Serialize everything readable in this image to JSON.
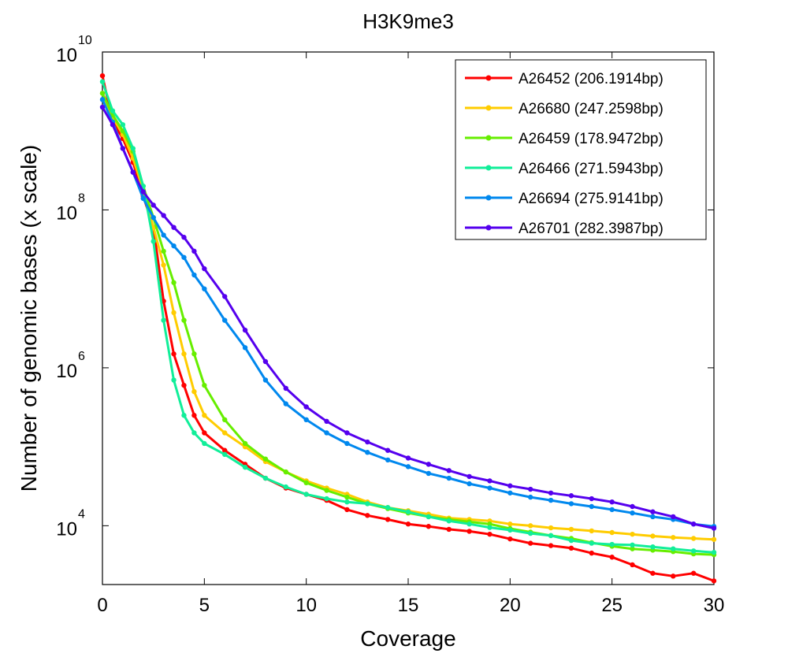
{
  "chart_data": {
    "type": "line",
    "title": "H3K9me3",
    "xlabel": "Coverage",
    "ylabel": "Number of genomic bases (x scale)",
    "xlim": [
      0,
      30
    ],
    "ylim": [
      1800,
      10000000000
    ],
    "y_scale": "log",
    "x_ticks": [
      "0",
      "5",
      "10",
      "15",
      "20",
      "25",
      "30"
    ],
    "y_ticks": [
      {
        "base": "10",
        "exp": "10",
        "value": 10000000000
      },
      {
        "base": "10",
        "exp": "8",
        "value": 100000000
      },
      {
        "base": "10",
        "exp": "6",
        "value": 1000000
      },
      {
        "base": "10",
        "exp": "4",
        "value": 10000
      }
    ],
    "grid": false,
    "legend_position": "top-right",
    "x": [
      0,
      0.5,
      1,
      1.5,
      2,
      2.5,
      3,
      3.5,
      4,
      4.5,
      5,
      6,
      7,
      8,
      9,
      10,
      11,
      12,
      13,
      14,
      15,
      16,
      17,
      18,
      19,
      20,
      21,
      22,
      23,
      24,
      25,
      26,
      27,
      28,
      29,
      30
    ],
    "series": [
      {
        "name": "A26452 (206.1914bp)",
        "color": "#ff0000",
        "values": [
          5000000000,
          1300000000,
          800000000,
          400000000,
          150000000,
          60000000,
          7000000,
          1500000,
          600000,
          250000,
          150000,
          90000,
          60000,
          40000,
          30000,
          25000,
          21000,
          16000,
          13500,
          12000,
          10500,
          9800,
          9000,
          8500,
          7800,
          6800,
          6000,
          5600,
          5200,
          4500,
          4000,
          3200,
          2500,
          2300,
          2500,
          2000
        ]
      },
      {
        "name": "A26680 (247.2598bp)",
        "color": "#ffcc00",
        "values": [
          3000000000,
          1500000000,
          900000000,
          450000000,
          180000000,
          60000000,
          20000000,
          5000000,
          1500000,
          500000,
          250000,
          150000,
          100000,
          65000,
          48000,
          37000,
          30000,
          25000,
          20000,
          17000,
          15500,
          14000,
          12500,
          12000,
          11500,
          10500,
          10000,
          9400,
          9000,
          8600,
          8200,
          7800,
          7400,
          7100,
          6900,
          6700
        ]
      },
      {
        "name": "A26459 (178.9472bp)",
        "color": "#66ee00",
        "values": [
          3000000000,
          1600000000,
          1000000000,
          550000000,
          200000000,
          80000000,
          30000000,
          12000000,
          4000000,
          1500000,
          600000,
          220000,
          110000,
          70000,
          48000,
          35000,
          28000,
          23000,
          19000,
          16500,
          14500,
          13000,
          12000,
          11200,
          10500,
          9200,
          8300,
          7500,
          6900,
          6100,
          5500,
          5100,
          4900,
          4700,
          4400,
          4300
        ]
      },
      {
        "name": "A26466 (271.5943bp)",
        "color": "#11ee99",
        "values": [
          4200000000,
          1800000000,
          1200000000,
          600000000,
          200000000,
          40000000,
          4000000,
          700000,
          250000,
          150000,
          110000,
          80000,
          55000,
          40000,
          31000,
          25000,
          22000,
          20000,
          19000,
          17000,
          15000,
          13000,
          11500,
          10500,
          9500,
          8800,
          8000,
          7500,
          6500,
          6000,
          5800,
          5700,
          5400,
          5100,
          4800,
          4600
        ]
      },
      {
        "name": "A26694 (275.9141bp)",
        "color": "#0088ee",
        "values": [
          2500000000,
          1300000000,
          600000000,
          300000000,
          140000000,
          80000000,
          48000000,
          35000000,
          25000000,
          15000000,
          10000000,
          4000000,
          1800000,
          700000,
          350000,
          220000,
          150000,
          110000,
          85000,
          68000,
          56000,
          46000,
          40000,
          34000,
          30000,
          26000,
          23000,
          21000,
          19000,
          17500,
          16000,
          14500,
          13000,
          12000,
          10500,
          9800
        ]
      },
      {
        "name": "A26701 (282.3987bp)",
        "color": "#5500ee",
        "values": [
          2000000000,
          1200000000,
          600000000,
          300000000,
          170000000,
          115000000,
          85000000,
          60000000,
          45000000,
          30000000,
          18000000,
          8000000,
          3000000,
          1200000,
          550000,
          320000,
          210000,
          150000,
          115000,
          90000,
          72000,
          60000,
          50000,
          42000,
          37000,
          32000,
          29000,
          26000,
          24000,
          22000,
          20000,
          17500,
          15000,
          13000,
          10500,
          9300
        ]
      }
    ]
  }
}
